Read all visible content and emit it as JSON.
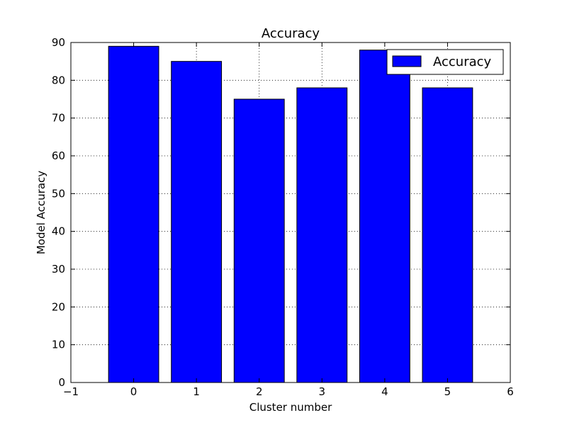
{
  "chart_data": {
    "type": "bar",
    "title": "Accuracy",
    "xlabel": "Cluster number",
    "ylabel": "Model Accuracy",
    "categories": [
      0,
      1,
      2,
      3,
      4,
      5
    ],
    "series": [
      {
        "name": "Accuracy",
        "values": [
          89,
          85,
          75,
          78,
          88,
          78
        ],
        "color": "#0000ff"
      }
    ],
    "xlim": [
      -1,
      6
    ],
    "ylim": [
      0,
      90
    ],
    "xticks": [
      "−1",
      "0",
      "1",
      "2",
      "3",
      "4",
      "5",
      "6"
    ],
    "yticks": [
      "0",
      "10",
      "20",
      "30",
      "40",
      "50",
      "60",
      "70",
      "80",
      "90"
    ],
    "grid": true,
    "legend_position": "top-right"
  }
}
